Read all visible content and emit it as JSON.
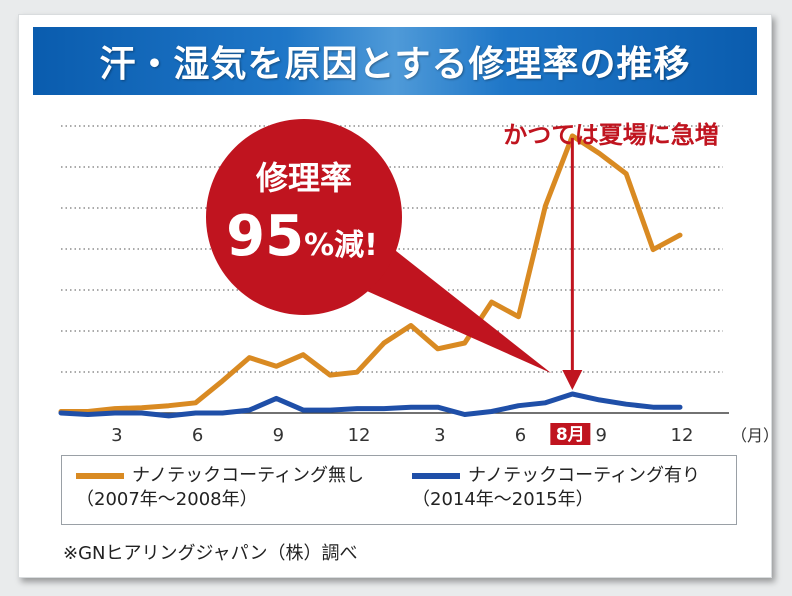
{
  "title": "汗・湿気を原因とする修理率の推移",
  "callout": {
    "line1": "修理率",
    "line2_big": "95",
    "line2_small": "%減!"
  },
  "annotation": "かつては夏場に急増",
  "highlight_month": "8月",
  "x_unit": "（月）",
  "legend": {
    "without": {
      "name": "ナノテックコーティング無し",
      "period": "（2007年～2008年）"
    },
    "with": {
      "name": "ナノテックコーティング有り",
      "period": "（2014年～2015年）"
    }
  },
  "source": "※GNヒアリングジャパン（株）調べ",
  "colors": {
    "without": "#d98a22",
    "with": "#1f4fa8",
    "callout": "#c0141f",
    "arrow": "#c0141f",
    "annotation": "#c0141f"
  },
  "chart_data": {
    "type": "line",
    "title": "汗・湿気を原因とする修理率の推移",
    "xlabel": "（月）",
    "ylabel": "",
    "ylim": [
      0,
      10
    ],
    "grid": true,
    "x_ticks": [
      "3",
      "6",
      "9",
      "12",
      "3",
      "6",
      "8月",
      "9",
      "12"
    ],
    "series": [
      {
        "name": "ナノテックコーティング無し",
        "period": "2007年～2008年",
        "values": [
          0.05,
          0.05,
          0.15,
          0.18,
          0.25,
          0.35,
          1.1,
          1.9,
          1.6,
          2.0,
          1.3,
          1.4,
          2.4,
          3.0,
          2.2,
          2.4,
          3.8,
          3.3,
          7.1,
          9.5,
          8.9,
          8.2,
          5.6,
          6.1
        ]
      },
      {
        "name": "ナノテックコーティング有り",
        "period": "2014年～2015年",
        "values": [
          0.0,
          -0.05,
          0.0,
          0.0,
          -0.1,
          0.0,
          0.0,
          0.1,
          0.5,
          0.1,
          0.1,
          0.15,
          0.15,
          0.2,
          0.2,
          -0.05,
          0.05,
          0.25,
          0.35,
          0.65,
          0.45,
          0.3,
          0.2,
          0.2
        ]
      }
    ]
  }
}
